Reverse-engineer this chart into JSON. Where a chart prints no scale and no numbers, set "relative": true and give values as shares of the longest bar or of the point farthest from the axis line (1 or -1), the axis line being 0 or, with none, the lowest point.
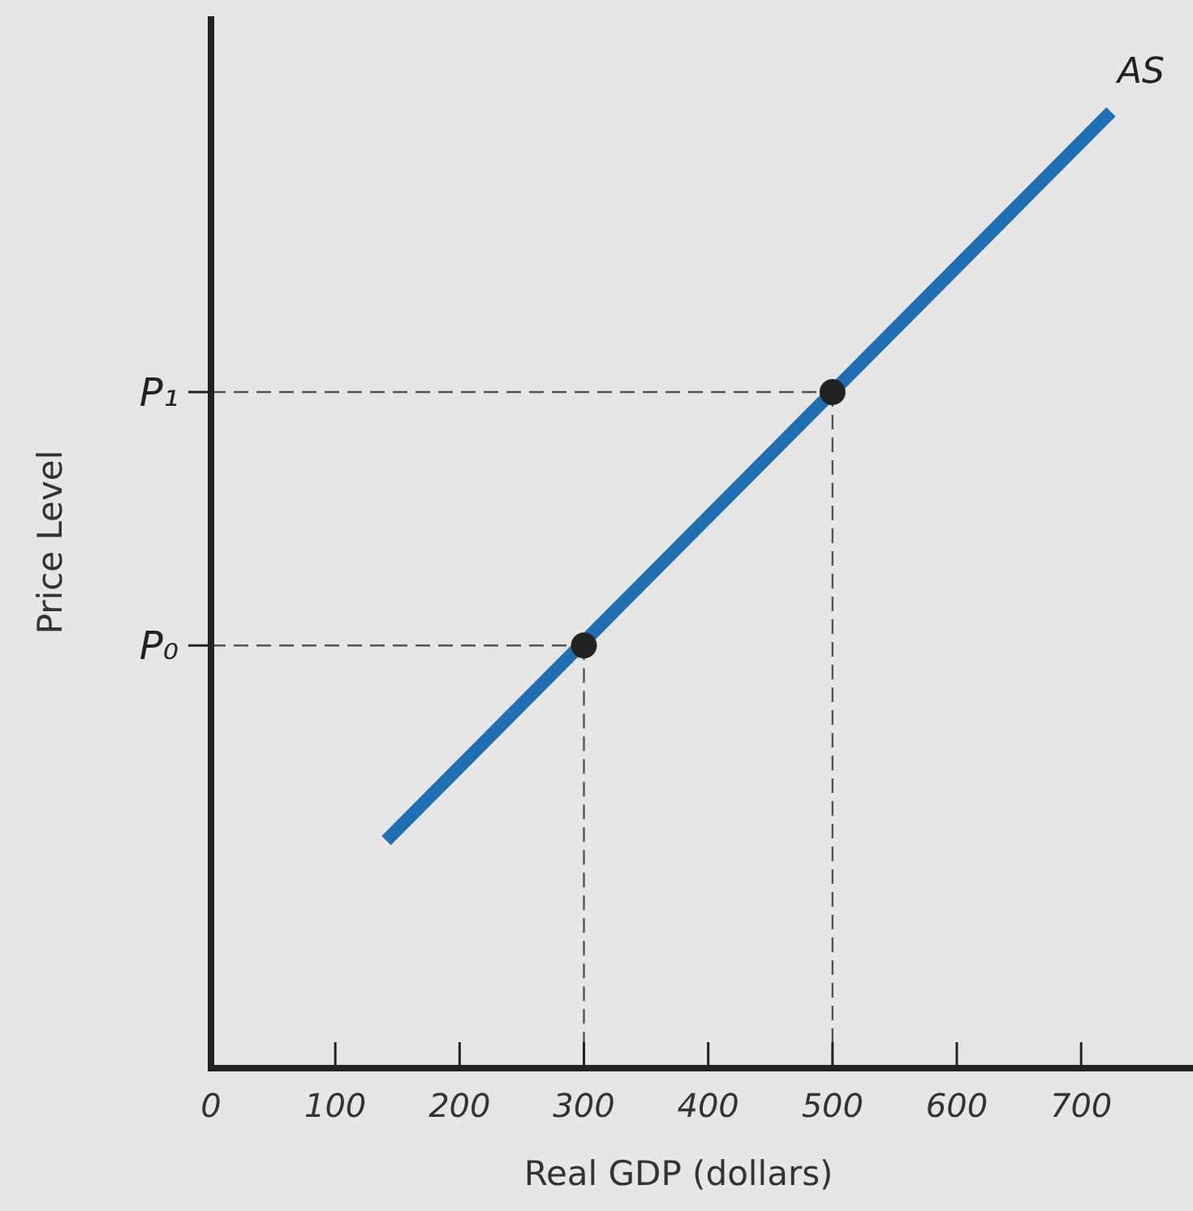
{
  "chart_data": {
    "type": "line",
    "xlabel": "Real GDP (dollars)",
    "ylabel": "Price Level",
    "relative": true,
    "xlim": [
      0,
      790
    ],
    "xticks": [
      0,
      100,
      200,
      300,
      400,
      500,
      600,
      700
    ],
    "series": [
      {
        "name": "AS",
        "color": "#1f6fb2",
        "x": [
          141,
          724
        ],
        "values": [
          0.238,
          1
        ],
        "marker": "none"
      },
      {
        "type": "scatter",
        "color": "#222222",
        "x": [
          300,
          500
        ],
        "values": [
          0.442,
          0.707
        ],
        "marker": "circle"
      }
    ],
    "ref_lines": [
      {
        "axis": "y",
        "value": 0.442,
        "label": "P₀",
        "line_style": "dashed",
        "color": "#555555"
      },
      {
        "axis": "y",
        "value": 0.707,
        "label": "P₁",
        "line_style": "dashed",
        "color": "#555555"
      }
    ]
  }
}
